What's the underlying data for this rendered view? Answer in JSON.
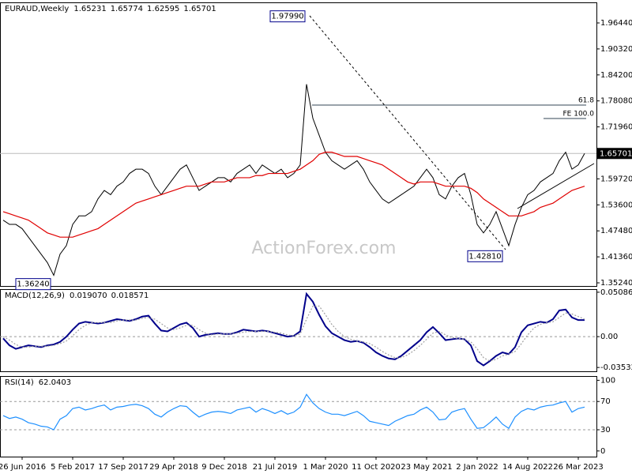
{
  "chart_data": [
    {
      "type": "line",
      "title": "EURAUD,Weekly",
      "header_values": [
        1.65231,
        1.65774,
        1.62595,
        1.65701
      ],
      "ylim": [
        1.345,
        2.0128
      ],
      "yticks": [
        {
          "value": 1.9644,
          "label": "1.96440"
        },
        {
          "value": 1.9032,
          "label": "1.90320"
        },
        {
          "value": 1.842,
          "label": "1.84200"
        },
        {
          "value": 1.7808,
          "label": "1.78080"
        },
        {
          "value": 1.7196,
          "label": "1.71960"
        },
        {
          "value": 1.6584,
          "label": "1.65840"
        },
        {
          "value": 1.5972,
          "label": "1.59720"
        },
        {
          "value": 1.536,
          "label": "1.53600"
        },
        {
          "value": 1.4748,
          "label": "1.47480"
        },
        {
          "value": 1.4136,
          "label": "1.41360"
        },
        {
          "value": 1.3524,
          "label": "1.35240"
        }
      ],
      "last_price": 1.65701,
      "annotations": [
        {
          "value": 1.9799,
          "label": "1.97990"
        },
        {
          "value": 1.4281,
          "label": "1.42810"
        },
        {
          "value": 1.3624,
          "label": "1.36240"
        }
      ],
      "levels": [
        "61.8",
        "FE 100.0"
      ],
      "watermark": "ActionForex.com",
      "series": [
        {
          "color": "#000000",
          "values": [
            1.5,
            1.49,
            1.49,
            1.48,
            1.46,
            1.44,
            1.42,
            1.4,
            1.37,
            1.42,
            1.44,
            1.49,
            1.51,
            1.51,
            1.52,
            1.55,
            1.57,
            1.56,
            1.58,
            1.59,
            1.61,
            1.62,
            1.62,
            1.61,
            1.58,
            1.56,
            1.58,
            1.6,
            1.62,
            1.63,
            1.6,
            1.57,
            1.58,
            1.59,
            1.6,
            1.6,
            1.59,
            1.61,
            1.62,
            1.63,
            1.61,
            1.63,
            1.62,
            1.61,
            1.62,
            1.6,
            1.61,
            1.63,
            1.82,
            1.74,
            1.7,
            1.66,
            1.64,
            1.63,
            1.62,
            1.63,
            1.64,
            1.62,
            1.59,
            1.57,
            1.55,
            1.54,
            1.55,
            1.56,
            1.57,
            1.58,
            1.6,
            1.62,
            1.6,
            1.56,
            1.55,
            1.58,
            1.6,
            1.61,
            1.56,
            1.49,
            1.47,
            1.49,
            1.52,
            1.48,
            1.44,
            1.49,
            1.53,
            1.56,
            1.57,
            1.59,
            1.6,
            1.61,
            1.64,
            1.66,
            1.62,
            1.63,
            1.657
          ]
        },
        {
          "color": "#e00000",
          "values": [
            1.52,
            1.515,
            1.51,
            1.505,
            1.5,
            1.49,
            1.48,
            1.47,
            1.465,
            1.46,
            1.46,
            1.46,
            1.465,
            1.47,
            1.475,
            1.48,
            1.49,
            1.5,
            1.51,
            1.52,
            1.53,
            1.54,
            1.545,
            1.55,
            1.555,
            1.56,
            1.565,
            1.57,
            1.575,
            1.58,
            1.58,
            1.58,
            1.585,
            1.59,
            1.59,
            1.59,
            1.595,
            1.6,
            1.6,
            1.6,
            1.605,
            1.605,
            1.61,
            1.61,
            1.61,
            1.61,
            1.615,
            1.62,
            1.63,
            1.64,
            1.655,
            1.66,
            1.66,
            1.655,
            1.65,
            1.65,
            1.65,
            1.645,
            1.64,
            1.635,
            1.63,
            1.62,
            1.61,
            1.6,
            1.59,
            1.585,
            1.59,
            1.59,
            1.59,
            1.585,
            1.58,
            1.58,
            1.58,
            1.58,
            1.575,
            1.565,
            1.55,
            1.54,
            1.53,
            1.52,
            1.51,
            1.51,
            1.51,
            1.515,
            1.52,
            1.53,
            1.535,
            1.54,
            1.55,
            1.56,
            1.57,
            1.575,
            1.58
          ]
        }
      ]
    },
    {
      "type": "line",
      "title": "MACD(12,26,9)",
      "header_values": [
        {
          "value": 0.01907,
          "label": "0.019070"
        },
        0.018571
      ],
      "ylim": [
        -0.0397,
        0.0544
      ],
      "yticks": [
        0.050863,
        {
          "value": 0,
          "label": "0.00"
        },
        -0.035322
      ],
      "series": [
        {
          "color": "#00008b",
          "values": [
            -0.002,
            -0.01,
            -0.014,
            -0.012,
            -0.01,
            -0.011,
            -0.012,
            -0.01,
            -0.009,
            -0.006,
            0.0,
            0.008,
            0.015,
            0.017,
            0.016,
            0.015,
            0.016,
            0.018,
            0.02,
            0.019,
            0.018,
            0.02,
            0.023,
            0.024,
            0.015,
            0.007,
            0.006,
            0.01,
            0.014,
            0.016,
            0.01,
            0.0,
            0.002,
            0.003,
            0.004,
            0.003,
            0.003,
            0.005,
            0.008,
            0.007,
            0.006,
            0.007,
            0.006,
            0.004,
            0.002,
            0.0,
            0.001,
            0.006,
            0.049,
            0.04,
            0.025,
            0.012,
            0.004,
            0.0,
            -0.004,
            -0.006,
            -0.005,
            -0.007,
            -0.012,
            -0.018,
            -0.022,
            -0.025,
            -0.026,
            -0.022,
            -0.016,
            -0.01,
            -0.004,
            0.005,
            0.011,
            0.004,
            -0.004,
            -0.003,
            -0.002,
            -0.003,
            -0.01,
            -0.028,
            -0.033,
            -0.028,
            -0.022,
            -0.018,
            -0.02,
            -0.012,
            0.005,
            0.013,
            0.015,
            0.017,
            0.016,
            0.02,
            0.03,
            0.031,
            0.022,
            0.019,
            0.019
          ]
        },
        {
          "color": "#a0a0a0",
          "dashed": true,
          "values": [
            0.0,
            -0.004,
            -0.009,
            -0.012,
            -0.012,
            -0.011,
            -0.011,
            -0.011,
            -0.01,
            -0.008,
            -0.005,
            0.001,
            0.008,
            0.013,
            0.016,
            0.016,
            0.016,
            0.016,
            0.018,
            0.019,
            0.019,
            0.019,
            0.021,
            0.022,
            0.02,
            0.015,
            0.01,
            0.008,
            0.01,
            0.013,
            0.013,
            0.008,
            0.004,
            0.002,
            0.003,
            0.003,
            0.003,
            0.004,
            0.005,
            0.006,
            0.006,
            0.006,
            0.006,
            0.005,
            0.004,
            0.002,
            0.001,
            0.003,
            0.02,
            0.035,
            0.035,
            0.025,
            0.014,
            0.006,
            0.0,
            -0.003,
            -0.005,
            -0.006,
            -0.008,
            -0.012,
            -0.017,
            -0.021,
            -0.024,
            -0.024,
            -0.021,
            -0.016,
            -0.01,
            -0.003,
            0.004,
            0.006,
            0.002,
            -0.001,
            -0.002,
            -0.003,
            -0.006,
            -0.014,
            -0.024,
            -0.028,
            -0.026,
            -0.022,
            -0.02,
            -0.017,
            -0.008,
            0.002,
            0.01,
            0.014,
            0.016,
            0.017,
            0.022,
            0.027,
            0.026,
            0.023,
            0.02
          ]
        }
      ]
    },
    {
      "type": "line",
      "title": "RSI(14)",
      "header_values": [
        62.0403
      ],
      "ylim": [
        -8,
        106
      ],
      "yticks": [
        100,
        70,
        30,
        0
      ],
      "dashed_levels": [
        70,
        30
      ],
      "categories": [
        null,
        null,
        null,
        "26 Jun 2016",
        null,
        null,
        null,
        null,
        null,
        null,
        null,
        "5 Feb 2017",
        null,
        null,
        null,
        null,
        null,
        null,
        null,
        "17 Sep 2017",
        null,
        null,
        null,
        null,
        null,
        null,
        null,
        "29 Apr 2018",
        null,
        null,
        null,
        null,
        null,
        null,
        null,
        "9 Dec 2018",
        null,
        null,
        null,
        null,
        null,
        null,
        null,
        "21 Jul 2019",
        null,
        null,
        null,
        null,
        null,
        null,
        null,
        "1 Mar 2020",
        null,
        null,
        null,
        null,
        null,
        null,
        null,
        "11 Oct 2020",
        null,
        null,
        null,
        null,
        null,
        null,
        null,
        "23 May 2021",
        null,
        null,
        null,
        null,
        null,
        null,
        null,
        "2 Jan 2022",
        null,
        null,
        null,
        null,
        null,
        null,
        null,
        "14 Aug 2022",
        null,
        null,
        null,
        null,
        null,
        null,
        null,
        "26 Mar 2023",
        null
      ],
      "series": [
        {
          "color": "#1e90ff",
          "values": [
            50,
            46,
            48,
            45,
            40,
            38,
            35,
            34,
            30,
            45,
            50,
            60,
            62,
            58,
            60,
            63,
            65,
            58,
            62,
            63,
            65,
            66,
            64,
            60,
            52,
            48,
            55,
            60,
            64,
            63,
            55,
            48,
            52,
            55,
            56,
            55,
            53,
            58,
            60,
            62,
            55,
            60,
            57,
            53,
            57,
            52,
            55,
            62,
            80,
            68,
            60,
            55,
            52,
            52,
            50,
            53,
            56,
            50,
            42,
            40,
            38,
            36,
            42,
            46,
            50,
            52,
            58,
            62,
            55,
            44,
            45,
            55,
            58,
            60,
            45,
            32,
            33,
            40,
            48,
            38,
            32,
            48,
            56,
            60,
            58,
            62,
            64,
            65,
            68,
            70,
            55,
            60,
            62.04
          ]
        }
      ]
    }
  ]
}
